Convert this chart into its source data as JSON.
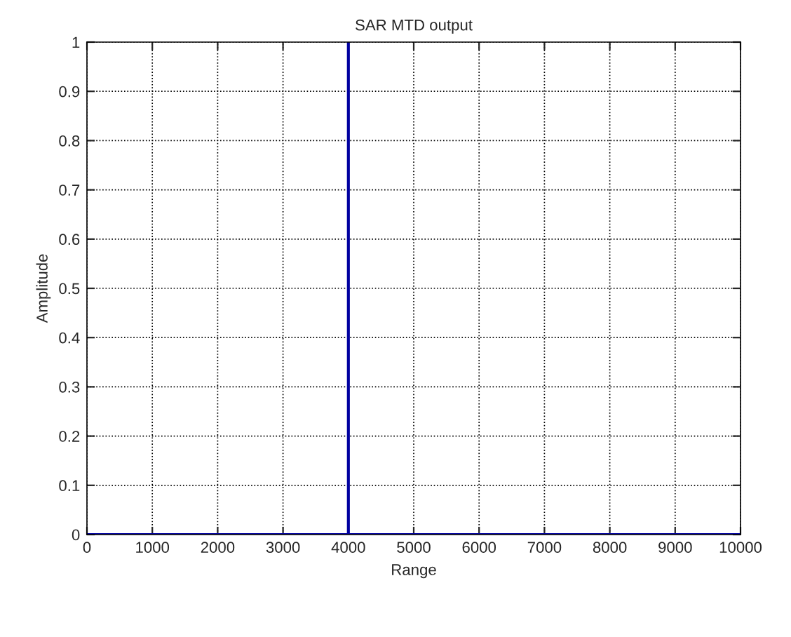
{
  "chart_data": {
    "type": "line",
    "title": "SAR MTD output",
    "xlabel": "Range",
    "ylabel": "Amplitude",
    "series": [
      {
        "color": "#0000a0",
        "x": [
          0,
          4000,
          4000,
          4000,
          10000
        ],
        "values": [
          0,
          0,
          1,
          0,
          0
        ]
      }
    ],
    "xlim": [
      0,
      10000
    ],
    "xticks": [
      0,
      1000,
      2000,
      3000,
      4000,
      5000,
      6000,
      7000,
      8000,
      9000,
      10000
    ],
    "ylim": [
      0,
      1
    ],
    "yticks": [
      0,
      0.1,
      0.2,
      0.3,
      0.4,
      0.5,
      0.6,
      0.7,
      0.8,
      0.9,
      1
    ],
    "grid": true,
    "line_style": "solid",
    "marker": "none",
    "legend": false
  }
}
